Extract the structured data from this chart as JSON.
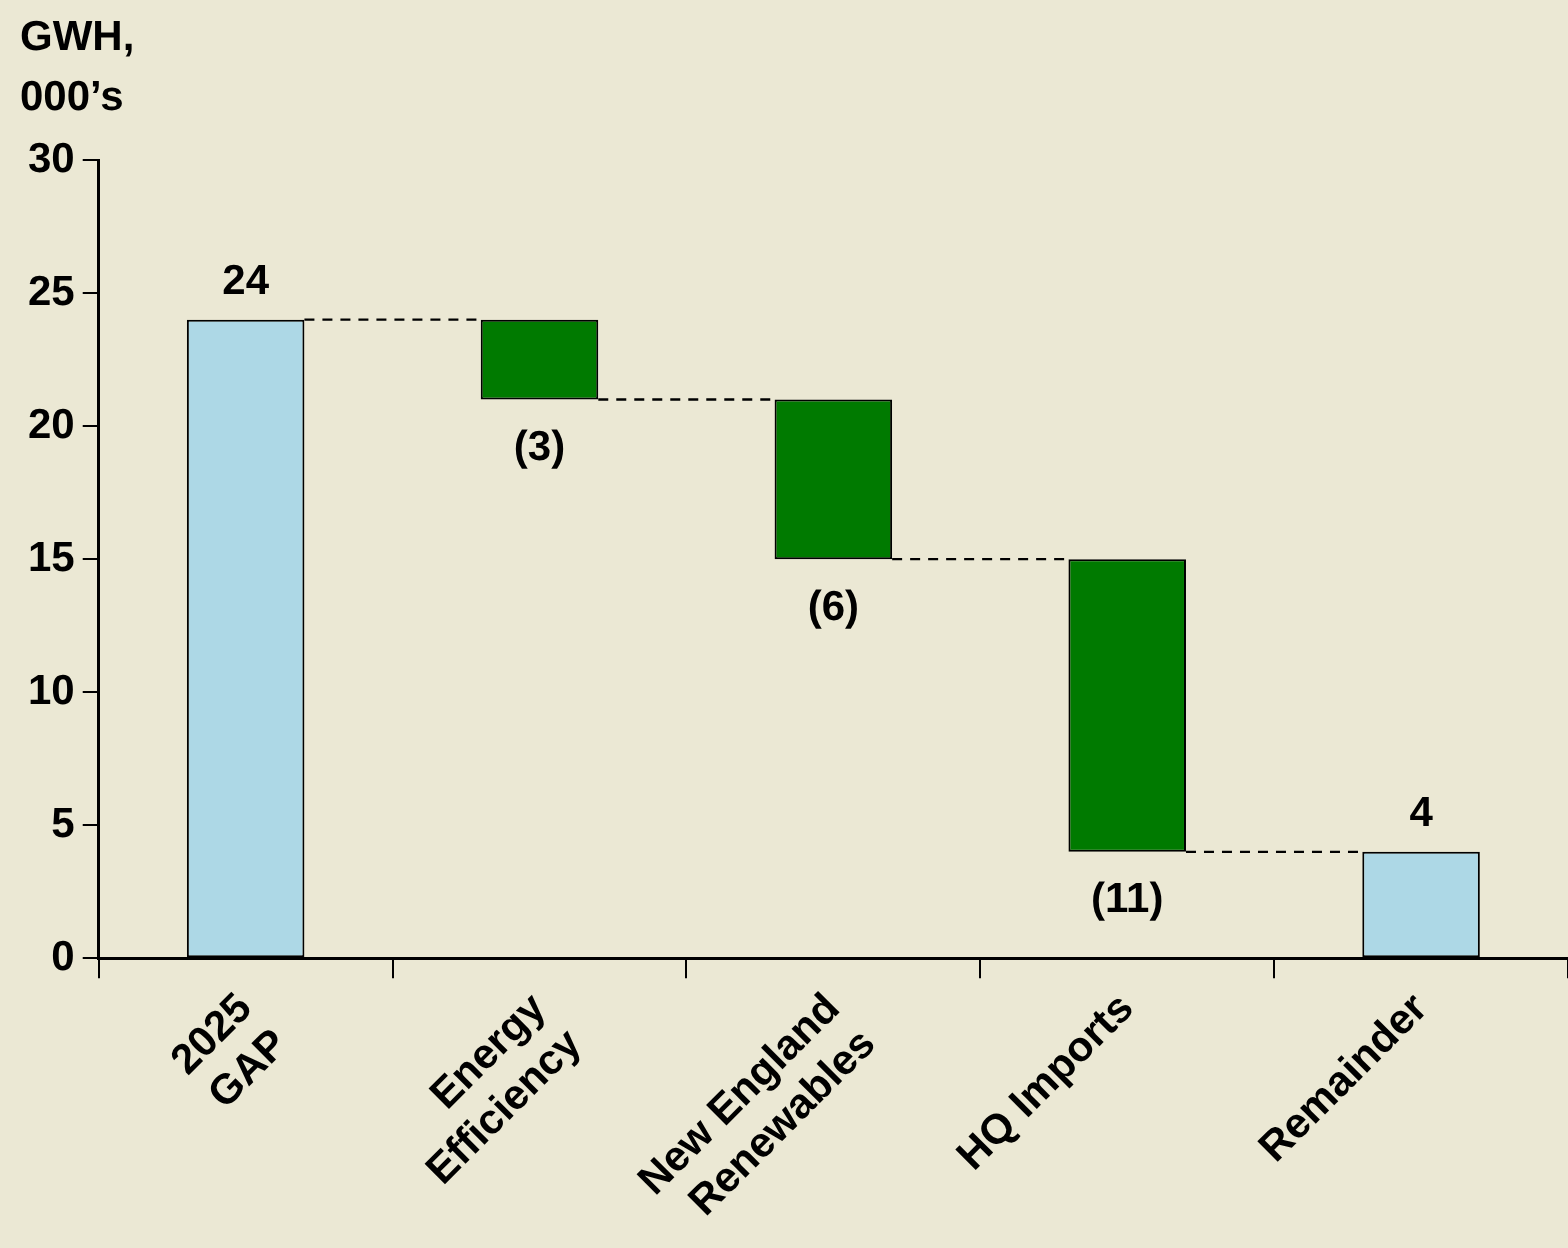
{
  "chart_data": {
    "type": "bar",
    "ylabel": "GWH,\n000’s",
    "categories": [
      "2025\nGAP",
      "Energy\nEfficiency",
      "New England\nRenewables",
      "HQ Imports",
      "Remainder"
    ],
    "values": [
      24,
      -3,
      -6,
      -11,
      4
    ],
    "base": [
      0,
      24,
      21,
      15,
      0
    ],
    "colors": [
      "#add8e6",
      "#007a00",
      "#007a00",
      "#007a00",
      "#add8e6"
    ],
    "value_labels": [
      "24",
      "(3)",
      "(6)",
      "(11)",
      "4"
    ],
    "ylim": [
      0,
      30
    ],
    "yticks": [
      0,
      5,
      10,
      15,
      20,
      25,
      30
    ],
    "grid": false,
    "legend": false
  }
}
